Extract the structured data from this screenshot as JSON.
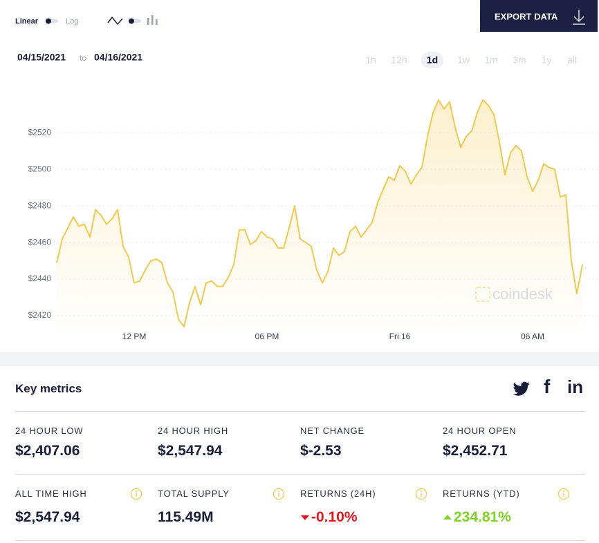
{
  "controls": {
    "scale_linear": "Linear",
    "scale_log": "Log",
    "export": "EXPORT DATA",
    "date_from": "04/15/2021",
    "date_word": "to",
    "date_to": "04/16/2021",
    "ranges": [
      "1h",
      "12h",
      "1d",
      "1w",
      "1m",
      "3m",
      "1y",
      "all"
    ],
    "active_range": 2
  },
  "watermark": "coindesk",
  "chart_data": {
    "type": "line",
    "color": "#f2c94c",
    "grid": true,
    "categories": [
      null,
      null,
      null,
      null,
      null,
      null,
      null,
      null,
      null,
      null,
      null,
      null,
      null,
      null,
      "12 PM",
      null,
      null,
      null,
      null,
      null,
      null,
      null,
      null,
      null,
      null,
      null,
      null,
      null,
      null,
      null,
      null,
      null,
      null,
      null,
      null,
      null,
      null,
      null,
      "06 PM",
      null,
      null,
      null,
      null,
      null,
      null,
      null,
      null,
      null,
      null,
      null,
      null,
      null,
      null,
      null,
      null,
      null,
      null,
      null,
      null,
      null,
      null,
      null,
      "Fri 16",
      null,
      null,
      null,
      null,
      null,
      null,
      null,
      null,
      null,
      null,
      null,
      null,
      null,
      null,
      null,
      null,
      null,
      null,
      null,
      null,
      null,
      null,
      null,
      "06 AM",
      null,
      null,
      null,
      null,
      null,
      null,
      null,
      null,
      null
    ],
    "values": [
      2449,
      2462,
      2468,
      2474,
      2469,
      2470,
      2463,
      2478,
      2475,
      2470,
      2473,
      2478,
      2458,
      2452,
      2438,
      2439,
      2445,
      2450,
      2451,
      2449,
      2438,
      2433,
      2418,
      2414,
      2427,
      2436,
      2426,
      2438,
      2439,
      2436,
      2436,
      2441,
      2448,
      2467,
      2467,
      2459,
      2461,
      2466,
      2463,
      2462,
      2457,
      2457,
      2468,
      2480,
      2462,
      2460,
      2458,
      2445,
      2438,
      2444,
      2457,
      2453,
      2455,
      2466,
      2469,
      2463,
      2467,
      2471,
      2482,
      2489,
      2496,
      2494,
      2502,
      2499,
      2492,
      2497,
      2501,
      2518,
      2531,
      2538,
      2533,
      2537,
      2523,
      2512,
      2518,
      2521,
      2531,
      2538,
      2535,
      2530,
      2515,
      2497,
      2509,
      2513,
      2510,
      2496,
      2488,
      2494,
      2503,
      2501,
      2500,
      2485,
      2486,
      2450,
      2432,
      2448
    ],
    "ylim": [
      2410,
      2545
    ],
    "yticks": [
      {
        "value": 2420,
        "label": "$2420"
      },
      {
        "value": 2440,
        "label": "$2440"
      },
      {
        "value": 2460,
        "label": "$2460"
      },
      {
        "value": 2480,
        "label": "$2480"
      },
      {
        "value": 2500,
        "label": "$2500"
      },
      {
        "value": 2520,
        "label": "$2520"
      }
    ]
  },
  "key_metrics": {
    "title": "Key metrics",
    "share": {
      "facebook": "f",
      "linkedin": "in"
    },
    "items": [
      {
        "label": "24 HOUR LOW",
        "value": "$2,407.06"
      },
      {
        "label": "24 HOUR HIGH",
        "value": "$2,547.94"
      },
      {
        "label": "NET CHANGE",
        "value": "$-2.53"
      },
      {
        "label": "24 HOUR OPEN",
        "value": "$2,452.71"
      },
      {
        "label": "ALL TIME HIGH",
        "value": "$2,547.94",
        "info": true
      },
      {
        "label": "TOTAL SUPPLY",
        "value": "115.49M",
        "info": true
      },
      {
        "label": "RETURNS (24H)",
        "value": "-0.10%",
        "info": true,
        "trend": "down"
      },
      {
        "label": "RETURNS (YTD)",
        "value": "234.81%",
        "info": true,
        "trend": "up"
      }
    ]
  }
}
